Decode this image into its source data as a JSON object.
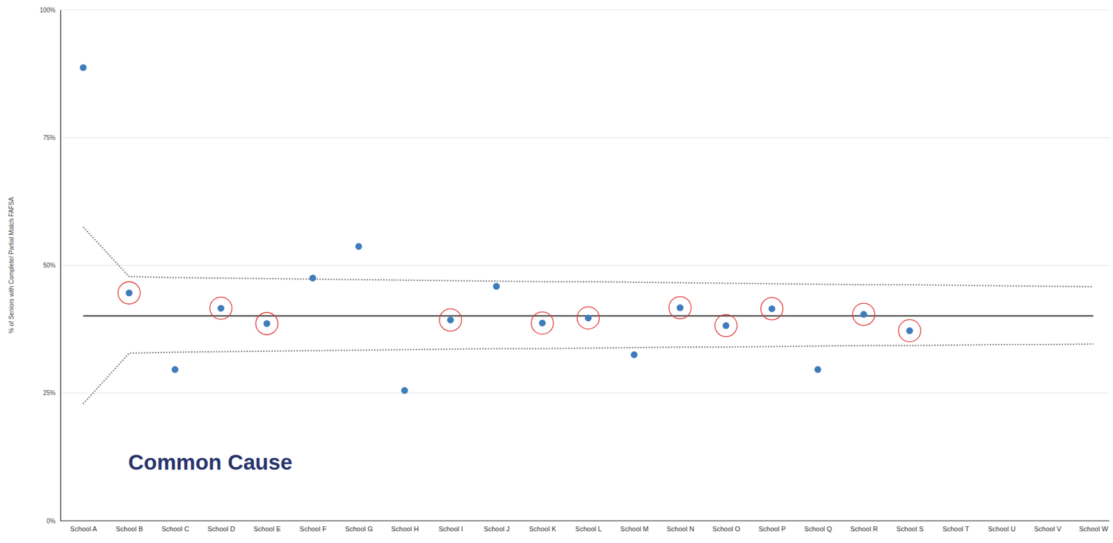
{
  "chart_data": {
    "type": "scatter",
    "annotation": "Common Cause",
    "y_label": "% of Seniors with Complete/ Partial Match FAFSA",
    "categories": [
      "School A",
      "School B",
      "School C",
      "School D",
      "School E",
      "School F",
      "School G",
      "School H",
      "School I",
      "School J",
      "School K",
      "School L",
      "School M",
      "School N",
      "School O",
      "School P",
      "School Q",
      "School R",
      "School S",
      "School T",
      "School U",
      "School V",
      "School W"
    ],
    "series": [
      {
        "values": [
          88.7,
          44.6,
          29.6,
          41.6,
          38.6,
          47.5,
          53.7,
          25.5,
          39.3,
          45.9,
          38.7,
          39.7,
          32.5,
          41.7,
          38.2,
          41.5,
          29.6,
          40.4,
          37.2,
          null,
          null,
          null,
          null
        ],
        "color": "#3f7cbc",
        "marker": "circle"
      },
      {
        "values": [
          null,
          44.6,
          null,
          41.6,
          38.6,
          null,
          null,
          null,
          39.3,
          null,
          38.7,
          39.7,
          null,
          41.7,
          38.2,
          41.5,
          null,
          40.4,
          37.2,
          null,
          null,
          null,
          null
        ],
        "color": "#e0312f",
        "marker": "ring"
      }
    ],
    "center": 40.1,
    "upper_limit": [
      57.5,
      47.8,
      47.6,
      47.5,
      47.4,
      47.3,
      47.2,
      47.1,
      47.0,
      46.9,
      46.8,
      46.8,
      46.7,
      46.6,
      46.5,
      46.4,
      46.3,
      46.2,
      46.2,
      46.1,
      46.0,
      45.9,
      45.8
    ],
    "lower_limit": [
      22.9,
      32.8,
      33.0,
      33.1,
      33.2,
      33.3,
      33.4,
      33.5,
      33.6,
      33.7,
      33.7,
      33.8,
      33.9,
      34.0,
      34.0,
      34.1,
      34.2,
      34.3,
      34.3,
      34.4,
      34.5,
      34.5,
      34.6
    ],
    "ylim": [
      0,
      100
    ],
    "yticks": [
      {
        "value": 0,
        "label": "0%"
      },
      {
        "value": 25,
        "label": "25%"
      },
      {
        "value": 50,
        "label": "50%"
      },
      {
        "value": 75,
        "label": "75%"
      },
      {
        "value": 100,
        "label": "100%"
      }
    ],
    "grid": true
  }
}
